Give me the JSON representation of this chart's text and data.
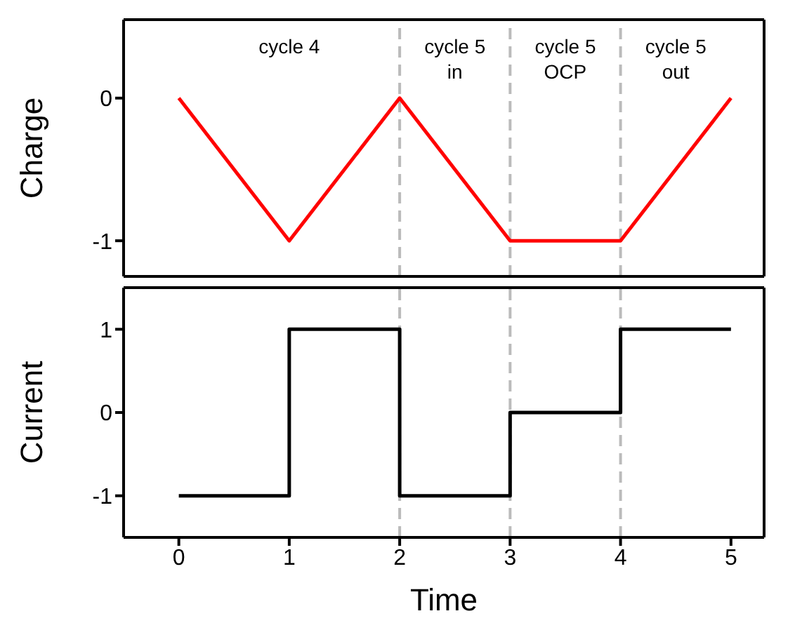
{
  "chart_data": [
    {
      "type": "line",
      "ylabel": "Charge",
      "x": [
        0,
        1,
        2,
        3,
        4,
        5
      ],
      "xlim": [
        -0.5,
        5.3
      ],
      "xticks": [
        0,
        1,
        2,
        3,
        4,
        5
      ],
      "ylim": [
        -1.25,
        0.55
      ],
      "yticks": [
        -1,
        0
      ],
      "tick_labels": "y",
      "grid": false,
      "marker": "none",
      "line_style": "solid",
      "series": [
        {
          "color": "#ff0000",
          "values": [
            0,
            -1,
            0,
            -1,
            -1,
            0
          ]
        }
      ],
      "ref_lines": [
        {
          "axis": "x",
          "value": 2,
          "color": "#bbbbbb",
          "line_style": "dashed"
        },
        {
          "axis": "x",
          "value": 3,
          "color": "#bbbbbb",
          "line_style": "dashed"
        },
        {
          "axis": "x",
          "value": 4,
          "color": "#bbbbbb",
          "line_style": "dashed"
        }
      ],
      "annotations": [
        "cycle 4",
        "cycle 5\nin",
        "cycle 5\nOCP",
        "cycle 5\nout"
      ]
    },
    {
      "type": "step",
      "ylabel": "Current",
      "xlabel": "Time",
      "x": [
        0,
        1,
        2,
        3,
        4,
        5
      ],
      "xlim": [
        -0.5,
        5.3
      ],
      "xticks": [
        0,
        1,
        2,
        3,
        4,
        5
      ],
      "ylim": [
        -1.5,
        1.5
      ],
      "yticks": [
        -1,
        0,
        1
      ],
      "grid": false,
      "marker": "none",
      "line_style": "solid",
      "series": [
        {
          "color": "#000000",
          "values": [
            -1,
            1,
            -1,
            0,
            1,
            1
          ]
        }
      ],
      "ref_lines": [
        {
          "axis": "x",
          "value": 2,
          "color": "#bbbbbb",
          "line_style": "dashed"
        },
        {
          "axis": "x",
          "value": 3,
          "color": "#bbbbbb",
          "line_style": "dashed"
        },
        {
          "axis": "x",
          "value": 4,
          "color": "#bbbbbb",
          "line_style": "dashed"
        }
      ]
    }
  ]
}
